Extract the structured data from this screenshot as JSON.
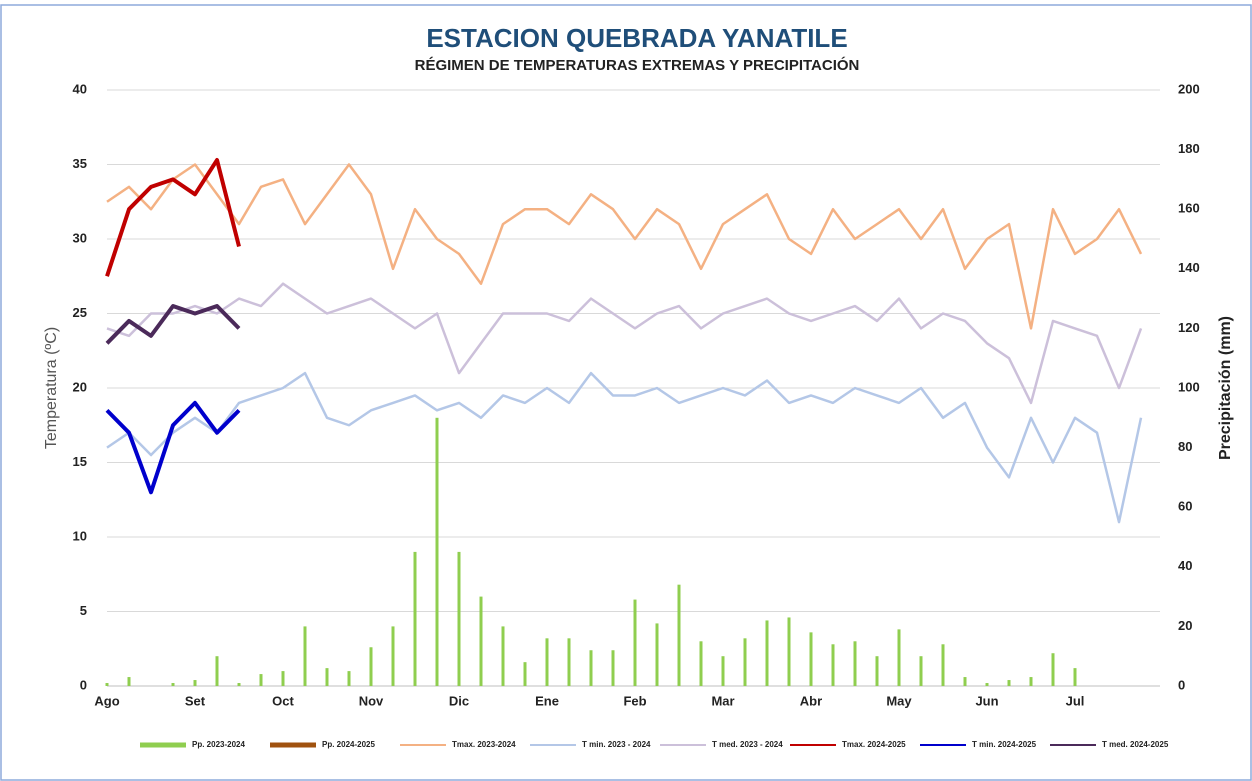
{
  "chart_data": {
    "type": "line",
    "title": "ESTACION QUEBRADA YANATILE",
    "subtitle": "RÉGIMEN DE TEMPERATURAS EXTREMAS Y PRECIPITACIÓN",
    "y_label": "Temperatura (ºC)",
    "y2_label": "Precipitación (mm)",
    "categories": [
      "Ago",
      null,
      null,
      null,
      "Set",
      null,
      null,
      null,
      "Oct",
      null,
      null,
      null,
      "Nov",
      null,
      null,
      null,
      "Dic",
      null,
      null,
      null,
      "Ene",
      null,
      null,
      null,
      "Feb",
      null,
      null,
      null,
      "Mar",
      null,
      null,
      null,
      "Abr",
      null,
      null,
      null,
      "May",
      null,
      null,
      null,
      "Jun",
      null,
      null,
      null,
      "Jul",
      null,
      null,
      null
    ],
    "ylim": [
      0,
      40
    ],
    "yticks": [
      0,
      5,
      10,
      15,
      20,
      25,
      30,
      35,
      40
    ],
    "y2lim": [
      0,
      200
    ],
    "y2ticks": [
      0,
      20,
      40,
      60,
      80,
      100,
      120,
      140,
      160,
      180,
      200
    ],
    "grid": true,
    "legend": "bottom",
    "series": [
      {
        "name": "Pp. 2023-2024",
        "type": "bar",
        "axis": "y2",
        "color": "#8fce4f",
        "values": [
          1,
          3,
          0,
          1,
          2,
          10,
          1,
          4,
          5,
          20,
          6,
          5,
          13,
          20,
          45,
          90,
          45,
          30,
          20,
          8,
          16,
          16,
          12,
          12,
          29,
          21,
          34,
          15,
          10,
          16,
          22,
          23,
          18,
          14,
          15,
          10,
          19,
          10,
          14,
          3,
          1,
          2,
          3,
          11,
          6,
          0,
          0,
          0
        ]
      },
      {
        "name": "Pp. 2024-2025",
        "type": "bar",
        "axis": "y2",
        "color": "#a0520f",
        "values": [
          0,
          0,
          0,
          0,
          0,
          0,
          0,
          null,
          null,
          null,
          null,
          null,
          null,
          null,
          null,
          null,
          null,
          null,
          null,
          null,
          null,
          null,
          null,
          null,
          null,
          null,
          null,
          null,
          null,
          null,
          null,
          null,
          null,
          null,
          null,
          null,
          null,
          null,
          null,
          null,
          null,
          null,
          null,
          null,
          null,
          null,
          null,
          null
        ]
      },
      {
        "name": "Tmax. 2023-2024",
        "type": "line",
        "color": "#f4b183",
        "values": [
          32.5,
          33.5,
          32,
          34,
          35,
          33,
          31,
          33.5,
          34,
          31,
          33,
          35,
          33,
          28,
          32,
          30,
          29,
          27,
          31,
          32,
          32,
          31,
          33,
          32,
          30,
          32,
          31,
          28,
          31,
          32,
          33,
          30,
          29,
          32,
          30,
          31,
          32,
          30,
          32,
          28,
          30,
          31,
          24,
          32,
          29,
          30,
          32,
          29
        ]
      },
      {
        "name": "T min. 2023 - 2024",
        "type": "line",
        "color": "#b4c7e7",
        "values": [
          16,
          17,
          15.5,
          17,
          18,
          17,
          19,
          19.5,
          20,
          21,
          18,
          17.5,
          18.5,
          19,
          19.5,
          18.5,
          19,
          18,
          19.5,
          19,
          20,
          19,
          21,
          19.5,
          19.5,
          20,
          19,
          19.5,
          20,
          19.5,
          20.5,
          19,
          19.5,
          19,
          20,
          19.5,
          19,
          20,
          18,
          19,
          16,
          14,
          18,
          15,
          18,
          17,
          11,
          18
        ]
      },
      {
        "name": "T med. 2023 - 2024",
        "type": "line",
        "color": "#ccc0da",
        "values": [
          24,
          23.5,
          25,
          25,
          25.5,
          25,
          26,
          25.5,
          27,
          26,
          25,
          25.5,
          26,
          25,
          24,
          25,
          21,
          23,
          25,
          25,
          25,
          24.5,
          26,
          25,
          24,
          25,
          25.5,
          24,
          25,
          25.5,
          26,
          25,
          24.5,
          25,
          25.5,
          24.5,
          26,
          24,
          25,
          24.5,
          23,
          22,
          19,
          24.5,
          24,
          23.5,
          20,
          24
        ]
      },
      {
        "name": "Tmax. 2024-2025",
        "type": "line",
        "color": "#c00000",
        "values": [
          27.5,
          32,
          33.5,
          34,
          33,
          35.3,
          29.5,
          null,
          null,
          null,
          null,
          null,
          null,
          null,
          null,
          null,
          null,
          null,
          null,
          null,
          null,
          null,
          null,
          null,
          null,
          null,
          null,
          null,
          null,
          null,
          null,
          null,
          null,
          null,
          null,
          null,
          null,
          null,
          null,
          null,
          null,
          null,
          null,
          null,
          null,
          null,
          null,
          null
        ]
      },
      {
        "name": "T min. 2024-2025",
        "type": "line",
        "color": "#0000cc",
        "values": [
          18.5,
          17,
          13,
          17.5,
          19,
          17,
          18.5,
          null,
          null,
          null,
          null,
          null,
          null,
          null,
          null,
          null,
          null,
          null,
          null,
          null,
          null,
          null,
          null,
          null,
          null,
          null,
          null,
          null,
          null,
          null,
          null,
          null,
          null,
          null,
          null,
          null,
          null,
          null,
          null,
          null,
          null,
          null,
          null,
          null,
          null,
          null,
          null,
          null
        ]
      },
      {
        "name": "T med. 2024-2025",
        "type": "line",
        "color": "#4b2a5a",
        "values": [
          23,
          24.5,
          23.5,
          25.5,
          25,
          25.5,
          24,
          null,
          null,
          null,
          null,
          null,
          null,
          null,
          null,
          null,
          null,
          null,
          null,
          null,
          null,
          null,
          null,
          null,
          null,
          null,
          null,
          null,
          null,
          null,
          null,
          null,
          null,
          null,
          null,
          null,
          null,
          null,
          null,
          null,
          null,
          null,
          null,
          null,
          null,
          null,
          null,
          null
        ]
      }
    ]
  }
}
